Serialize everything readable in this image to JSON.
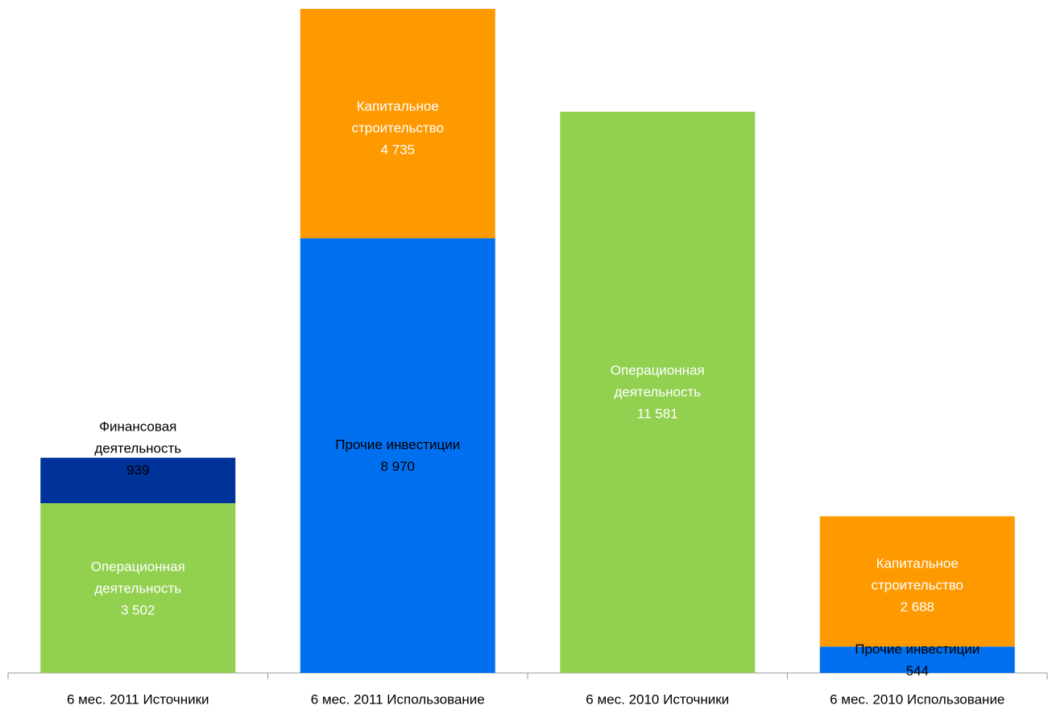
{
  "chart_data": {
    "type": "stacked_bar",
    "categories": [
      "6 мес. 2011 Источники",
      "6 мес. 2011 Использование",
      "6 мес. 2010 Источники",
      "6 мес. 2010 Использование"
    ],
    "series": [
      {
        "name": "Операционная деятельность",
        "color": "#92d050",
        "values": [
          3502,
          null,
          11581,
          null
        ],
        "value_labels": [
          "3 502",
          null,
          "11 581",
          null
        ]
      },
      {
        "name": "Финансовая деятельность",
        "color": "#003399",
        "values": [
          939,
          null,
          null,
          null
        ],
        "value_labels": [
          "939",
          null,
          null,
          null
        ]
      },
      {
        "name": "Прочие инвестиции",
        "color": "#0070f0",
        "values": [
          null,
          8970,
          null,
          544
        ],
        "value_labels": [
          null,
          "8 970",
          null,
          "544"
        ]
      },
      {
        "name": "Капитальное строительство",
        "color": "#ff9900",
        "values": [
          null,
          4735,
          null,
          2688
        ],
        "value_labels": [
          null,
          "4 735",
          null,
          "2 688"
        ]
      }
    ]
  }
}
